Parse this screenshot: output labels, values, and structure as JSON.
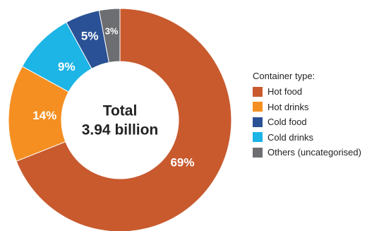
{
  "chart_data": {
    "type": "pie",
    "style": "donut",
    "categories": [
      "Hot food",
      "Hot drinks",
      "Cold food",
      "Cold drinks",
      "Others (uncategorised)"
    ],
    "values": [
      69,
      14,
      5,
      9,
      3
    ],
    "unit": "%",
    "center_label": [
      "Total",
      "3.94 billion"
    ],
    "legend": {
      "title": "Container type:",
      "placement": "right"
    },
    "colors": {
      "Hot food": "#c85a2e",
      "Hot drinks": "#f58f21",
      "Cold food": "#2a5195",
      "Cold drinks": "#1db4e6",
      "Others (uncategorised)": "#6d6e71"
    },
    "slice_order_clockwise_from_top": [
      "Hot food",
      "Hot drinks",
      "Cold drinks",
      "Cold food",
      "Others (uncategorised)"
    ]
  }
}
